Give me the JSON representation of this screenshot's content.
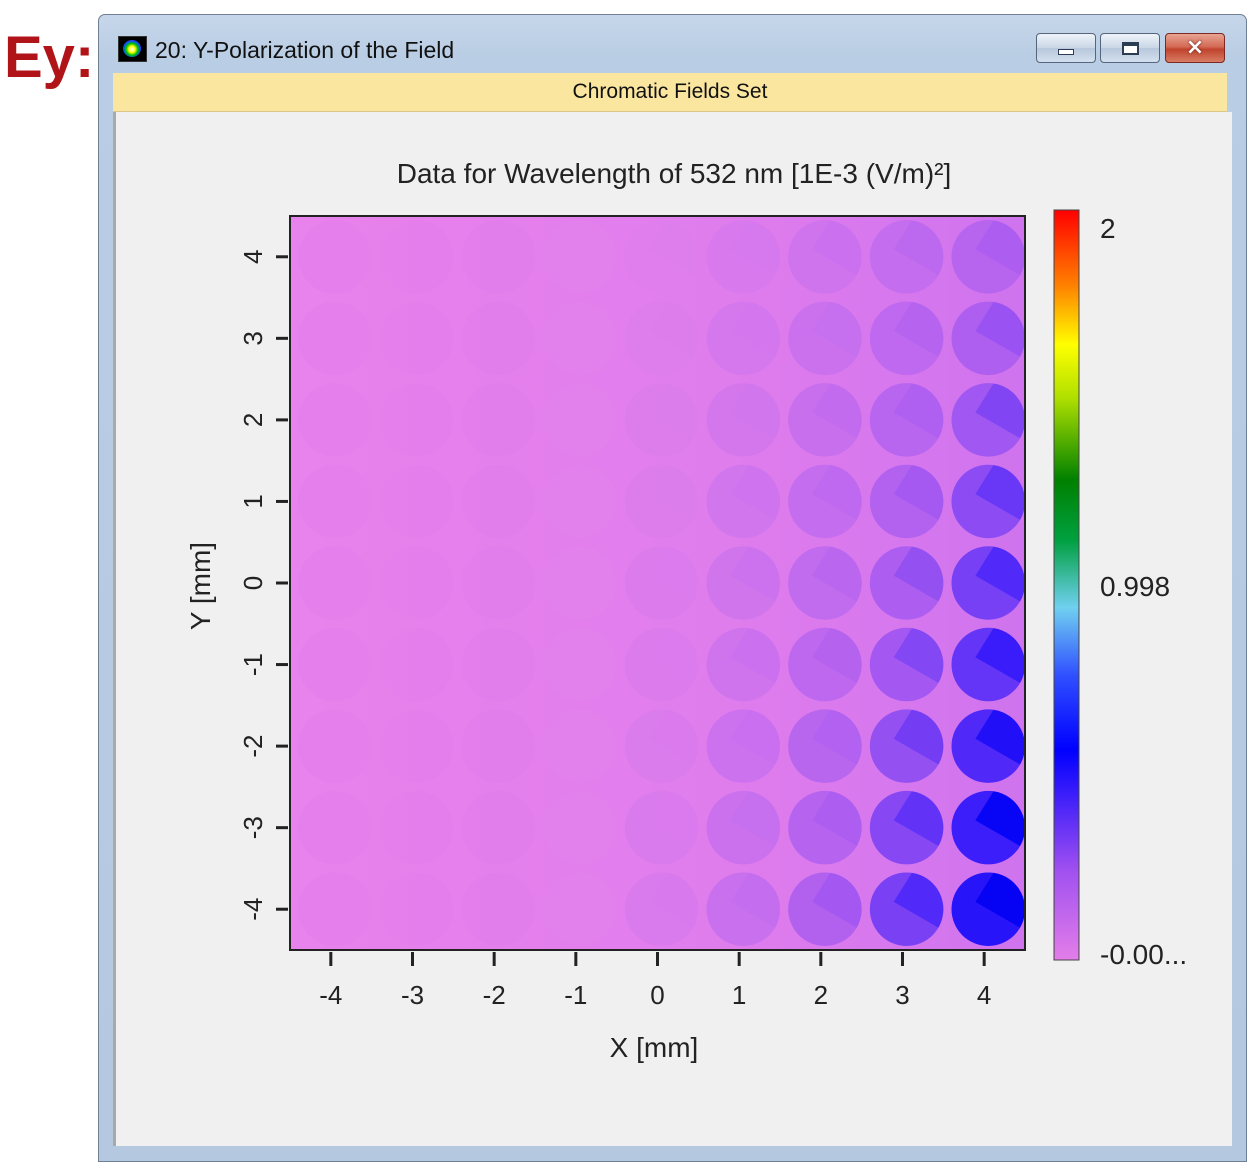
{
  "side_label": "Ey:",
  "window": {
    "title": "20: Y-Polarization of the Field",
    "banner": "Chromatic Fields Set",
    "buttons": {
      "minimize": "minimize",
      "maximize": "maximize",
      "close": "×"
    }
  },
  "chart_data": {
    "type": "heatmap",
    "title": "Data for Wavelength of 532 nm  [1E-3 (V/m)²]",
    "xlabel": "X [mm]",
    "ylabel": "Y [mm]",
    "xlim": [
      -4.5,
      4.5
    ],
    "ylim": [
      -4.5,
      4.5
    ],
    "xticks": [
      -4,
      -3,
      -2,
      -1,
      0,
      1,
      2,
      3,
      4
    ],
    "yticks": [
      -4,
      -3,
      -2,
      -1,
      0,
      1,
      2,
      3,
      4
    ],
    "colorbar": {
      "ticks": [
        {
          "value": 2,
          "label": "2"
        },
        {
          "value": 0.998,
          "label": "0.998"
        },
        {
          "value": 0,
          "label": "-0.00..."
        }
      ],
      "min": 0,
      "max": 2,
      "colormap": [
        "#e37ee9",
        "#a050f0",
        "#0000ff",
        "#70d0f0",
        "#008000",
        "#ffff00",
        "#ff8000",
        "#ff0000"
      ]
    },
    "background_value": 0.02,
    "lens_grid": {
      "x": [
        -4,
        -3,
        -2,
        -1,
        0,
        1,
        2,
        3,
        4
      ],
      "y": [
        -4,
        -3,
        -2,
        -1,
        0,
        1,
        2,
        3,
        4
      ],
      "radius_mm": 0.45
    },
    "values_note": "relative darkening of lenslet spots increases toward +X and -Y"
  }
}
